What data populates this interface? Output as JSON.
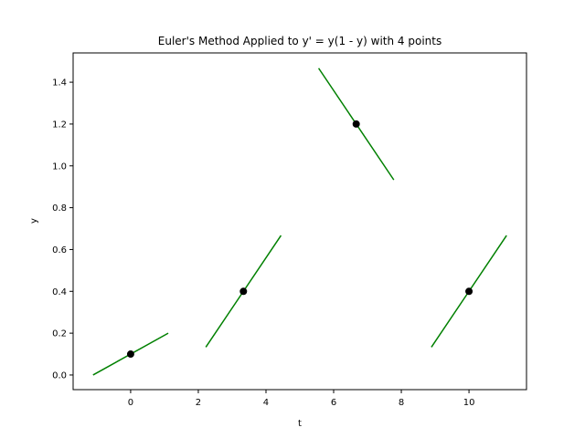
{
  "chart_data": {
    "type": "line",
    "title": "Euler's Method Applied to y' = y(1 - y) with 4 points",
    "xlabel": "t",
    "ylabel": "y",
    "xlim": [
      -1.7,
      11.7
    ],
    "ylim": [
      -0.07,
      1.54
    ],
    "x_ticks": [
      0,
      2,
      4,
      6,
      8,
      10
    ],
    "y_ticks": [
      0.0,
      0.2,
      0.4,
      0.6,
      0.8,
      1.0,
      1.2,
      1.4
    ],
    "x_tick_labels": [
      "0",
      "2",
      "4",
      "6",
      "8",
      "10"
    ],
    "y_tick_labels": [
      "0.0",
      "0.2",
      "0.4",
      "0.6",
      "0.8",
      "1.0",
      "1.2",
      "1.4"
    ],
    "grid": false,
    "legend": "none",
    "points": [
      {
        "t": 0.0,
        "y": 0.1
      },
      {
        "t": 3.333,
        "y": 0.4
      },
      {
        "t": 6.667,
        "y": 1.2
      },
      {
        "t": 10.0,
        "y": 0.4
      }
    ],
    "tangent_segments": [
      {
        "t": [
          -1.111,
          1.111
        ],
        "y": [
          0.0,
          0.2
        ]
      },
      {
        "t": [
          2.222,
          4.444
        ],
        "y": [
          0.133,
          0.667
        ]
      },
      {
        "t": [
          5.556,
          7.778
        ],
        "y": [
          1.467,
          0.933
        ]
      },
      {
        "t": [
          8.889,
          11.111
        ],
        "y": [
          0.133,
          0.667
        ]
      }
    ],
    "colors": {
      "point": "#000000",
      "tangent": "#008000",
      "axes": "#000000"
    }
  }
}
